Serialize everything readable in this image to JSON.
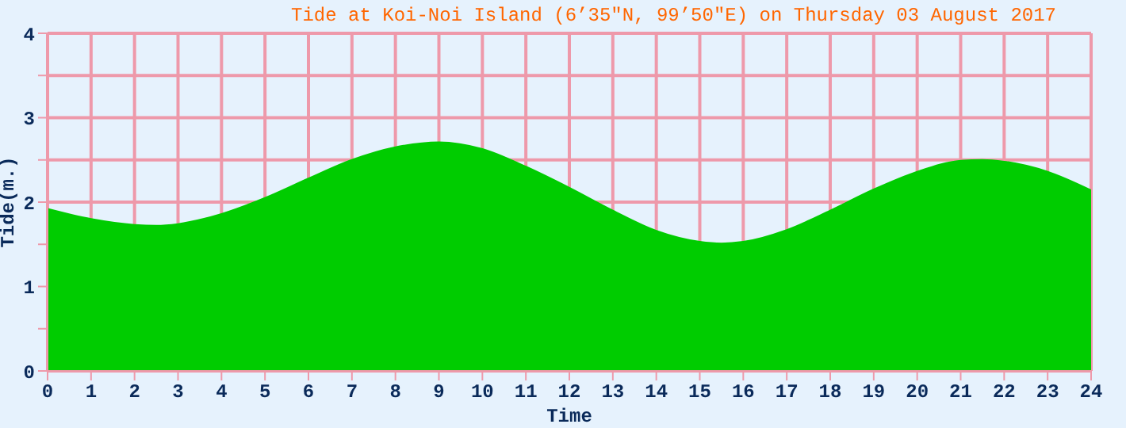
{
  "chart_data": {
    "type": "area",
    "title": "Tide at Koi-Noi Island (6’35\"N, 99’50\"E) on Thursday 03 August 2017",
    "xlabel": "Time",
    "ylabel": "Tide(m.)",
    "x": [
      0,
      1,
      2,
      2.5,
      3,
      4,
      5,
      6,
      7,
      8,
      9,
      10,
      11,
      12,
      13,
      14,
      15,
      15.5,
      16,
      17,
      18,
      19,
      20,
      21,
      21.5,
      22,
      23,
      24
    ],
    "series": [
      {
        "color": "#00cc00",
        "values": [
          1.92,
          1.8,
          1.73,
          1.72,
          1.74,
          1.86,
          2.05,
          2.28,
          2.5,
          2.65,
          2.71,
          2.63,
          2.42,
          2.17,
          1.9,
          1.66,
          1.53,
          1.51,
          1.53,
          1.67,
          1.9,
          2.15,
          2.36,
          2.49,
          2.5,
          2.48,
          2.36,
          2.14
        ]
      }
    ],
    "xlim": [
      0,
      24
    ],
    "xticks": [
      0,
      1,
      2,
      3,
      4,
      5,
      6,
      7,
      8,
      9,
      10,
      11,
      12,
      13,
      14,
      15,
      16,
      17,
      18,
      19,
      20,
      21,
      22,
      23,
      24
    ],
    "ylim": [
      0,
      4
    ],
    "yticks": [
      0,
      {
        "value": 0.5,
        "label": null
      },
      1,
      {
        "value": 1.5,
        "label": null
      },
      2,
      {
        "value": 2.5,
        "label": null
      },
      3,
      {
        "value": 3.5,
        "label": null
      },
      4
    ],
    "grid": true
  }
}
